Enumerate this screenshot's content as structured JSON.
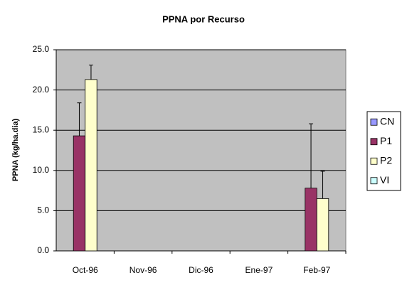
{
  "chart_data": {
    "type": "bar",
    "title": "PPNA por Recurso",
    "y_label": "PPNA (kg/ha.dia)",
    "categories": [
      "Oct-96",
      "Nov-96",
      "Dic-96",
      "Ene-97",
      "Feb-97"
    ],
    "series": [
      {
        "name": "CN",
        "color": "#9999ff",
        "values": [
          null,
          null,
          null,
          null,
          null
        ],
        "errors": [
          null,
          null,
          null,
          null,
          null
        ]
      },
      {
        "name": "P1",
        "color": "#993366",
        "values": [
          14.3,
          null,
          null,
          null,
          7.8
        ],
        "errors": [
          4.1,
          null,
          null,
          null,
          8.0
        ]
      },
      {
        "name": "P2",
        "color": "#ffffcc",
        "values": [
          21.3,
          null,
          null,
          null,
          6.5
        ],
        "errors": [
          1.8,
          null,
          null,
          null,
          3.4
        ]
      },
      {
        "name": "VI",
        "color": "#ccffff",
        "values": [
          null,
          null,
          null,
          null,
          null
        ],
        "errors": [
          null,
          null,
          null,
          null,
          null
        ]
      }
    ],
    "ylim": [
      0,
      25
    ],
    "yticks": [
      {
        "value": 0,
        "label": "0.0"
      },
      {
        "value": 5,
        "label": "5.0"
      },
      {
        "value": 10,
        "label": "10.0"
      },
      {
        "value": 15,
        "label": "15.0"
      },
      {
        "value": 20,
        "label": "20.0"
      },
      {
        "value": 25,
        "label": "25.0"
      }
    ],
    "grid": true,
    "plot_background": "#c0c0c0",
    "legend": "right"
  }
}
